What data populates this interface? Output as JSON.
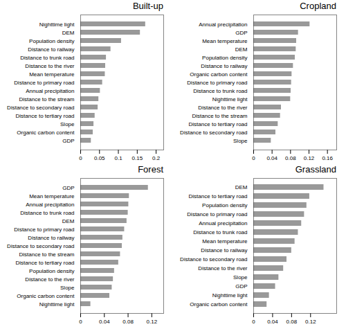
{
  "chart_data": [
    {
      "type": "bar",
      "orientation": "horizontal",
      "title": "Built-up",
      "categories": [
        "Nighttime light",
        "DEM",
        "Population density",
        "Distance to railway",
        "Distance to trunk road",
        "Distance to the river",
        "Mean temperature",
        "Distance to primary road",
        "Annual precipitation",
        "Distance to the stream",
        "Distance to secondary road",
        "Distance to tertiary road",
        "Slope",
        "Organic carbon content",
        "GDP"
      ],
      "values": [
        0.172,
        0.158,
        0.108,
        0.08,
        0.068,
        0.066,
        0.065,
        0.058,
        0.052,
        0.048,
        0.046,
        0.038,
        0.035,
        0.033,
        0.028
      ],
      "color": "#999999",
      "xlim": [
        0,
        0.22
      ],
      "xticks": [
        0,
        0.05,
        0.1,
        0.15,
        0.2
      ]
    },
    {
      "type": "bar",
      "orientation": "horizontal",
      "title": "Cropland",
      "categories": [
        "Annual precipitation",
        "GDP",
        "Mean temperature",
        "DEM",
        "Population density",
        "Distance to railway",
        "Organic carbon content",
        "Distance to primary road",
        "Distance to trunk road",
        "Nighttime light",
        "Distance to the river",
        "Distance to the stream",
        "Distance to tertiary road",
        "Distance to secondary road",
        "Slope"
      ],
      "values": [
        0.122,
        0.097,
        0.093,
        0.092,
        0.09,
        0.086,
        0.083,
        0.082,
        0.081,
        0.08,
        0.06,
        0.058,
        0.053,
        0.048,
        0.038
      ],
      "color": "#999999",
      "xlim": [
        0,
        0.18
      ],
      "xticks": [
        0,
        0.04,
        0.08,
        0.12,
        0.16
      ]
    },
    {
      "type": "bar",
      "orientation": "horizontal",
      "title": "Forest",
      "categories": [
        "GDP",
        "Mean temperature",
        "Annual precipitation",
        "Distance to trunk road",
        "DEM",
        "Distance to primary road",
        "Distance to railway",
        "Distance to secondary road",
        "Distance to the stream",
        "Distance to tertiary road",
        "Population density",
        "Distance to the river",
        "Slope",
        "Organic carbon content",
        "Nighttime light"
      ],
      "values": [
        0.114,
        0.082,
        0.081,
        0.08,
        0.078,
        0.074,
        0.071,
        0.07,
        0.067,
        0.064,
        0.057,
        0.055,
        0.053,
        0.049,
        0.017
      ],
      "color": "#999999",
      "xlim": [
        0,
        0.14
      ],
      "xticks": [
        0,
        0.04,
        0.08,
        0.12
      ]
    },
    {
      "type": "bar",
      "orientation": "horizontal",
      "title": "Grassland",
      "categories": [
        "DEM",
        "Distance to tertiary road",
        "Population density",
        "Distance to primary road",
        "Annual precipitation",
        "Distance to trunk road",
        "Mean temperature",
        "Distance to railway",
        "Distance to secondary road",
        "Distance to the river",
        "Slope",
        "GDP",
        "Nighttime light",
        "Organic carbon content"
      ],
      "values": [
        0.148,
        0.118,
        0.112,
        0.107,
        0.101,
        0.094,
        0.087,
        0.08,
        0.07,
        0.063,
        0.053,
        0.046,
        0.033,
        0.028
      ],
      "color": "#999999",
      "xlim": [
        0,
        0.175
      ],
      "xticks": [
        0,
        0.04,
        0.08,
        0.12
      ]
    }
  ]
}
